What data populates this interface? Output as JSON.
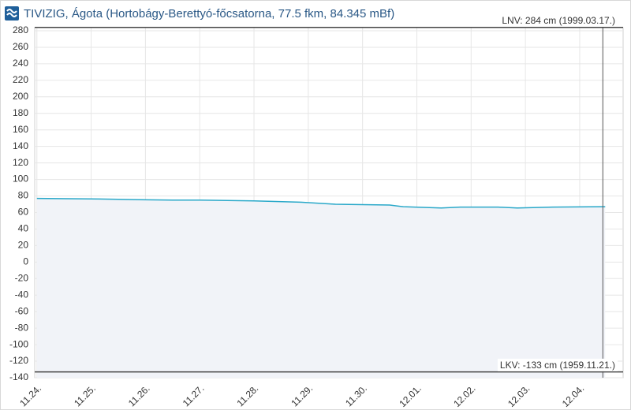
{
  "chart_data": {
    "type": "area-line",
    "title": "TIVIZIG, Ágota (Hortobágy-Berettyó-főcsatorna, 77.5 fkm, 84.345 mBf)",
    "x": [
      0,
      1,
      1.5,
      1.9,
      2.5,
      3,
      4,
      4.85,
      5.5,
      6.5,
      6.75,
      7.45,
      7.8,
      8.5,
      8.85,
      9.5,
      10.47
    ],
    "values": [
      77,
      76.5,
      76,
      75.5,
      75,
      75,
      74,
      72.5,
      70,
      69,
      67,
      65.5,
      66.5,
      66.5,
      65.5,
      66.5,
      67
    ],
    "color": "#29a8c9",
    "fill": "#f1f3f8",
    "xlim": [
      -0.04,
      10.8
    ],
    "xticks": [
      {
        "value": 0,
        "label": "11.24."
      },
      {
        "value": 1,
        "label": "11.25."
      },
      {
        "value": 2,
        "label": "11.26."
      },
      {
        "value": 3,
        "label": "11.27."
      },
      {
        "value": 4,
        "label": "11.28."
      },
      {
        "value": 5,
        "label": "11.29."
      },
      {
        "value": 6,
        "label": "11.30."
      },
      {
        "value": 7,
        "label": "12.01."
      },
      {
        "value": 8,
        "label": "12.02."
      },
      {
        "value": 9,
        "label": "12.03."
      },
      {
        "value": 10,
        "label": "12.04."
      }
    ],
    "ylim": [
      -140,
      280
    ],
    "yticks": [
      -140,
      -120,
      -100,
      -80,
      -60,
      -40,
      -20,
      0,
      20,
      40,
      60,
      80,
      100,
      120,
      140,
      160,
      180,
      200,
      220,
      240,
      260,
      280
    ],
    "grid": true,
    "reference_lines": [
      {
        "value": 284,
        "label": "LNV: 284 cm (1999.03.17.)"
      },
      {
        "value": -133,
        "label": "LKV: -133 cm (1959.11.21.)"
      }
    ]
  }
}
